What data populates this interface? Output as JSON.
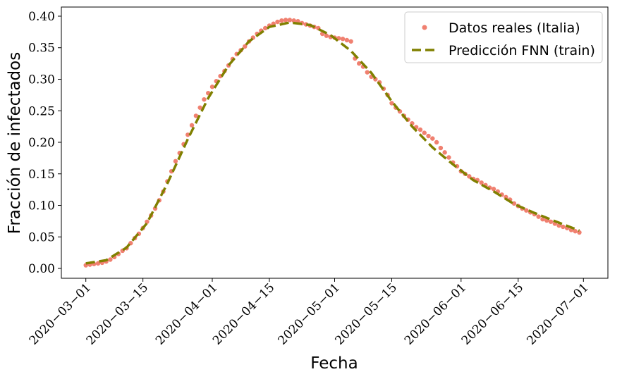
{
  "chart_data": {
    "type": "scatter-line",
    "xlabel": "Fecha",
    "ylabel": "Fracción de infectados",
    "xlim": [
      "2020-02-24",
      "2020-07-07"
    ],
    "ylim": [
      -0.0156,
      0.4145
    ],
    "xticks": [
      {
        "value": "2020-03-01",
        "label": "2020−03−01"
      },
      {
        "value": "2020-03-15",
        "label": "2020−03−15"
      },
      {
        "value": "2020-04-01",
        "label": "2020−04−01"
      },
      {
        "value": "2020-04-15",
        "label": "2020−04−15"
      },
      {
        "value": "2020-05-01",
        "label": "2020−05−01"
      },
      {
        "value": "2020-05-15",
        "label": "2020−05−15"
      },
      {
        "value": "2020-06-01",
        "label": "2020−06−01"
      },
      {
        "value": "2020-06-15",
        "label": "2020−06−15"
      },
      {
        "value": "2020-07-01",
        "label": "2020−07−01"
      }
    ],
    "yticks": [
      {
        "value": 0,
        "label": "0.00"
      },
      0.05,
      {
        "value": 0.1,
        "label": "0.10"
      },
      0.15,
      {
        "value": 0.2,
        "label": "0.20"
      },
      0.25,
      {
        "value": 0.3,
        "label": "0.30"
      },
      0.35,
      {
        "value": 0.4,
        "label": "0.40"
      }
    ],
    "legend": "upper right",
    "series": [
      {
        "name": "Datos reales (Italia)",
        "kind": "scatter",
        "color": "#f08070",
        "x": [
          "2020-03-01",
          "2020-03-02",
          "2020-03-03",
          "2020-03-04",
          "2020-03-05",
          "2020-03-06",
          "2020-03-07",
          "2020-03-08",
          "2020-03-09",
          "2020-03-10",
          "2020-03-11",
          "2020-03-12",
          "2020-03-13",
          "2020-03-14",
          "2020-03-15",
          "2020-03-16",
          "2020-03-17",
          "2020-03-18",
          "2020-03-19",
          "2020-03-20",
          "2020-03-21",
          "2020-03-22",
          "2020-03-23",
          "2020-03-24",
          "2020-03-25",
          "2020-03-26",
          "2020-03-27",
          "2020-03-28",
          "2020-03-29",
          "2020-03-30",
          "2020-03-31",
          "2020-04-01",
          "2020-04-02",
          "2020-04-03",
          "2020-04-04",
          "2020-04-05",
          "2020-04-06",
          "2020-04-07",
          "2020-04-08",
          "2020-04-09",
          "2020-04-10",
          "2020-04-11",
          "2020-04-12",
          "2020-04-13",
          "2020-04-14",
          "2020-04-15",
          "2020-04-16",
          "2020-04-17",
          "2020-04-18",
          "2020-04-19",
          "2020-04-20",
          "2020-04-21",
          "2020-04-22",
          "2020-04-23",
          "2020-04-24",
          "2020-04-25",
          "2020-04-26",
          "2020-04-27",
          "2020-04-28",
          "2020-04-29",
          "2020-04-30",
          "2020-05-01",
          "2020-05-02",
          "2020-05-03",
          "2020-05-04",
          "2020-05-05",
          "2020-05-06",
          "2020-05-07",
          "2020-05-08",
          "2020-05-09",
          "2020-05-10",
          "2020-05-11",
          "2020-05-12",
          "2020-05-13",
          "2020-05-14",
          "2020-05-15",
          "2020-05-16",
          "2020-05-17",
          "2020-05-18",
          "2020-05-19",
          "2020-05-20",
          "2020-05-21",
          "2020-05-22",
          "2020-05-23",
          "2020-05-24",
          "2020-05-25",
          "2020-05-26",
          "2020-05-27",
          "2020-05-28",
          "2020-05-29",
          "2020-05-30",
          "2020-05-31",
          "2020-06-01",
          "2020-06-02",
          "2020-06-03",
          "2020-06-04",
          "2020-06-05",
          "2020-06-06",
          "2020-06-07",
          "2020-06-08",
          "2020-06-09",
          "2020-06-10",
          "2020-06-11",
          "2020-06-12",
          "2020-06-13",
          "2020-06-14",
          "2020-06-15",
          "2020-06-16",
          "2020-06-17",
          "2020-06-18",
          "2020-06-19",
          "2020-06-20",
          "2020-06-21",
          "2020-06-22",
          "2020-06-23",
          "2020-06-24",
          "2020-06-25",
          "2020-06-26",
          "2020-06-27",
          "2020-06-28",
          "2020-06-29",
          "2020-06-30"
        ],
        "values": [
          0.005,
          0.006,
          0.007,
          0.008,
          0.009,
          0.011,
          0.014,
          0.018,
          0.023,
          0.028,
          0.032,
          0.04,
          0.048,
          0.055,
          0.064,
          0.074,
          0.084,
          0.095,
          0.108,
          0.122,
          0.138,
          0.154,
          0.17,
          0.183,
          0.197,
          0.212,
          0.227,
          0.242,
          0.255,
          0.268,
          0.278,
          0.288,
          0.297,
          0.305,
          0.313,
          0.322,
          0.332,
          0.34,
          0.346,
          0.352,
          0.36,
          0.366,
          0.372,
          0.377,
          0.381,
          0.385,
          0.388,
          0.391,
          0.393,
          0.394,
          0.394,
          0.393,
          0.392,
          0.389,
          0.387,
          0.385,
          0.383,
          0.381,
          0.372,
          0.369,
          0.367,
          0.366,
          0.365,
          0.364,
          0.362,
          0.36,
          0.333,
          0.325,
          0.32,
          0.311,
          0.304,
          0.3,
          0.295,
          0.285,
          0.275,
          0.262,
          0.255,
          0.249,
          0.242,
          0.236,
          0.23,
          0.224,
          0.22,
          0.215,
          0.21,
          0.206,
          0.2,
          0.191,
          0.184,
          0.176,
          0.168,
          0.162,
          0.154,
          0.15,
          0.146,
          0.142,
          0.14,
          0.136,
          0.132,
          0.128,
          0.126,
          0.122,
          0.117,
          0.113,
          0.109,
          0.103,
          0.099,
          0.095,
          0.092,
          0.089,
          0.086,
          0.082,
          0.078,
          0.076,
          0.074,
          0.071,
          0.068,
          0.066,
          0.064,
          0.061,
          0.059,
          0.057
        ]
      },
      {
        "name": "Predicción FNN (train)",
        "kind": "line",
        "color": "#808000",
        "x": [
          "2020-03-01",
          "2020-03-06",
          "2020-03-11",
          "2020-03-16",
          "2020-03-21",
          "2020-03-26",
          "2020-03-31",
          "2020-04-05",
          "2020-04-10",
          "2020-04-15",
          "2020-04-20",
          "2020-04-25",
          "2020-04-30",
          "2020-05-05",
          "2020-05-10",
          "2020-05-15",
          "2020-05-20",
          "2020-05-25",
          "2020-05-30",
          "2020-06-04",
          "2020-06-09",
          "2020-06-14",
          "2020-06-19",
          "2020-06-24",
          "2020-06-30"
        ],
        "values": [
          0.008,
          0.013,
          0.033,
          0.072,
          0.135,
          0.205,
          0.27,
          0.322,
          0.36,
          0.383,
          0.39,
          0.386,
          0.37,
          0.345,
          0.31,
          0.265,
          0.225,
          0.192,
          0.165,
          0.14,
          0.122,
          0.102,
          0.088,
          0.075,
          0.06
        ]
      }
    ]
  }
}
